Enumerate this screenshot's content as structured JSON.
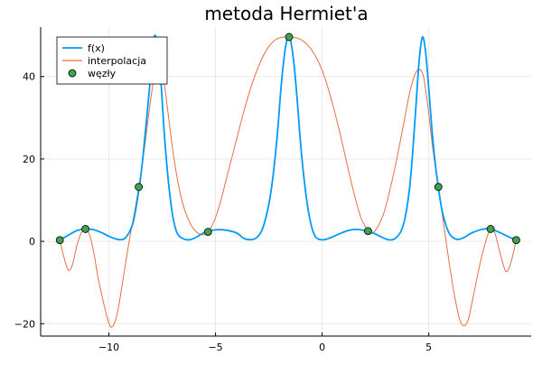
{
  "chart_data": {
    "type": "line",
    "title": "metoda Hermiet'a",
    "xlabel": "",
    "ylabel": "",
    "xlim": [
      -13.2,
      9.8
    ],
    "ylim": [
      -23,
      52
    ],
    "x_ticks": [
      -10,
      -5,
      0,
      5
    ],
    "x_tick_labels": [
      "−10",
      "−5",
      "0",
      "5"
    ],
    "y_ticks": [
      -20,
      0,
      20,
      40
    ],
    "y_tick_labels": [
      "−20",
      "0",
      "20",
      "40"
    ],
    "grid": true,
    "legend_position": "top-left",
    "series": [
      {
        "name": "f(x)",
        "kind": "line",
        "color": "#009AFA",
        "points": [
          [
            -12.3,
            0.3
          ],
          [
            -11.9,
            1.5
          ],
          [
            -11.5,
            2.6
          ],
          [
            -11.1,
            3.0
          ],
          [
            -10.7,
            2.8
          ],
          [
            -10.3,
            2.0
          ],
          [
            -9.9,
            1.0
          ],
          [
            -9.5,
            0.4
          ],
          [
            -9.2,
            1.0
          ],
          [
            -8.9,
            4.0
          ],
          [
            -8.7,
            9.0
          ],
          [
            -8.5,
            16.0
          ],
          [
            -8.3,
            26.0
          ],
          [
            -8.1,
            37.0
          ],
          [
            -7.95,
            46.0
          ],
          [
            -7.85,
            50.0
          ],
          [
            -7.7,
            47.0
          ],
          [
            -7.55,
            38.0
          ],
          [
            -7.4,
            26.0
          ],
          [
            -7.2,
            14.0
          ],
          [
            -7.0,
            6.0
          ],
          [
            -6.8,
            2.0
          ],
          [
            -6.5,
            0.6
          ],
          [
            -6.2,
            0.4
          ],
          [
            -5.9,
            1.0
          ],
          [
            -5.5,
            2.2
          ],
          [
            -5.0,
            2.8
          ],
          [
            -4.5,
            2.7
          ],
          [
            -4.0,
            2.0
          ],
          [
            -3.7,
            0.8
          ],
          [
            -3.4,
            0.4
          ],
          [
            -3.1,
            0.8
          ],
          [
            -2.8,
            3.0
          ],
          [
            -2.5,
            9.0
          ],
          [
            -2.3,
            16.0
          ],
          [
            -2.1,
            26.0
          ],
          [
            -1.95,
            36.0
          ],
          [
            -1.8,
            44.0
          ],
          [
            -1.65,
            49.0
          ],
          [
            -1.55,
            49.6
          ],
          [
            -1.45,
            48.0
          ],
          [
            -1.3,
            42.0
          ],
          [
            -1.15,
            33.0
          ],
          [
            -1.0,
            23.0
          ],
          [
            -0.8,
            13.0
          ],
          [
            -0.6,
            6.0
          ],
          [
            -0.4,
            2.0
          ],
          [
            -0.2,
            0.6
          ],
          [
            0.1,
            0.4
          ],
          [
            0.4,
            0.9
          ],
          [
            0.8,
            1.8
          ],
          [
            1.2,
            2.6
          ],
          [
            1.6,
            2.9
          ],
          [
            2.0,
            2.6
          ],
          [
            2.4,
            2.0
          ],
          [
            2.8,
            1.0
          ],
          [
            3.1,
            0.4
          ],
          [
            3.4,
            0.6
          ],
          [
            3.7,
            2.5
          ],
          [
            3.9,
            6.0
          ],
          [
            4.1,
            13.0
          ],
          [
            4.25,
            22.0
          ],
          [
            4.4,
            33.0
          ],
          [
            4.55,
            44.0
          ],
          [
            4.7,
            49.6
          ],
          [
            4.85,
            46.0
          ],
          [
            5.0,
            37.0
          ],
          [
            5.15,
            27.0
          ],
          [
            5.3,
            19.0
          ],
          [
            5.45,
            13.2
          ],
          [
            5.6,
            8.0
          ],
          [
            5.8,
            4.0
          ],
          [
            6.0,
            1.6
          ],
          [
            6.3,
            0.5
          ],
          [
            6.6,
            0.8
          ],
          [
            7.0,
            2.0
          ],
          [
            7.5,
            2.9
          ],
          [
            7.9,
            3.0
          ],
          [
            8.3,
            2.2
          ],
          [
            8.7,
            1.2
          ],
          [
            9.1,
            0.3
          ]
        ]
      },
      {
        "name": "interpolacja",
        "kind": "line",
        "color": "#E26F46",
        "points": [
          [
            -12.3,
            0.3
          ],
          [
            -12.1,
            -4.0
          ],
          [
            -11.9,
            -7.0
          ],
          [
            -11.7,
            -5.5
          ],
          [
            -11.5,
            -1.0
          ],
          [
            -11.3,
            2.0
          ],
          [
            -11.1,
            3.0
          ],
          [
            -10.9,
            1.5
          ],
          [
            -10.7,
            -3.0
          ],
          [
            -10.5,
            -9.0
          ],
          [
            -10.2,
            -16.0
          ],
          [
            -9.95,
            -20.5
          ],
          [
            -9.75,
            -20.0
          ],
          [
            -9.55,
            -16.0
          ],
          [
            -9.3,
            -8.0
          ],
          [
            -9.05,
            0.0
          ],
          [
            -8.8,
            7.0
          ],
          [
            -8.6,
            13.2
          ],
          [
            -8.4,
            20.0
          ],
          [
            -8.2,
            28.0
          ],
          [
            -8.0,
            36.0
          ],
          [
            -7.8,
            41.5
          ],
          [
            -7.6,
            42.0
          ],
          [
            -7.4,
            38.0
          ],
          [
            -7.2,
            30.0
          ],
          [
            -7.0,
            22.0
          ],
          [
            -6.75,
            14.0
          ],
          [
            -6.5,
            8.5
          ],
          [
            -6.2,
            4.5
          ],
          [
            -5.9,
            2.3
          ],
          [
            -5.6,
            1.6
          ],
          [
            -5.35,
            2.3
          ],
          [
            -5.1,
            4.5
          ],
          [
            -4.8,
            9.0
          ],
          [
            -4.5,
            15.0
          ],
          [
            -4.1,
            23.0
          ],
          [
            -3.7,
            31.0
          ],
          [
            -3.3,
            38.0
          ],
          [
            -2.9,
            43.5
          ],
          [
            -2.5,
            47.3
          ],
          [
            -2.1,
            49.2
          ],
          [
            -1.55,
            49.6
          ],
          [
            -1.0,
            49.0
          ],
          [
            -0.5,
            46.5
          ],
          [
            0.0,
            41.5
          ],
          [
            0.4,
            35.0
          ],
          [
            0.8,
            27.0
          ],
          [
            1.2,
            18.0
          ],
          [
            1.5,
            11.5
          ],
          [
            1.8,
            6.0
          ],
          [
            2.0,
            3.8
          ],
          [
            2.15,
            2.5
          ],
          [
            2.35,
            2.0
          ],
          [
            2.6,
            3.5
          ],
          [
            2.9,
            7.0
          ],
          [
            3.2,
            13.0
          ],
          [
            3.5,
            20.0
          ],
          [
            3.8,
            28.0
          ],
          [
            4.1,
            36.0
          ],
          [
            4.35,
            40.5
          ],
          [
            4.55,
            41.8
          ],
          [
            4.75,
            40.0
          ],
          [
            4.95,
            33.0
          ],
          [
            5.2,
            22.0
          ],
          [
            5.45,
            13.2
          ],
          [
            5.7,
            4.0
          ],
          [
            5.95,
            -5.0
          ],
          [
            6.2,
            -13.0
          ],
          [
            6.45,
            -19.0
          ],
          [
            6.65,
            -20.5
          ],
          [
            6.85,
            -19.0
          ],
          [
            7.1,
            -13.0
          ],
          [
            7.4,
            -5.5
          ],
          [
            7.7,
            0.5
          ],
          [
            7.9,
            3.0
          ],
          [
            8.1,
            2.0
          ],
          [
            8.35,
            -3.0
          ],
          [
            8.6,
            -7.2
          ],
          [
            8.8,
            -6.0
          ],
          [
            9.0,
            -2.0
          ],
          [
            9.1,
            0.3
          ]
        ]
      },
      {
        "name": "węzły",
        "kind": "scatter",
        "color": "#3DA44D",
        "points": [
          [
            -12.3,
            0.3
          ],
          [
            -11.1,
            3.0
          ],
          [
            -8.6,
            13.2
          ],
          [
            -5.35,
            2.3
          ],
          [
            -1.55,
            49.6
          ],
          [
            2.15,
            2.5
          ],
          [
            5.45,
            13.2
          ],
          [
            7.9,
            3.0
          ],
          [
            9.1,
            0.3
          ]
        ]
      }
    ]
  }
}
